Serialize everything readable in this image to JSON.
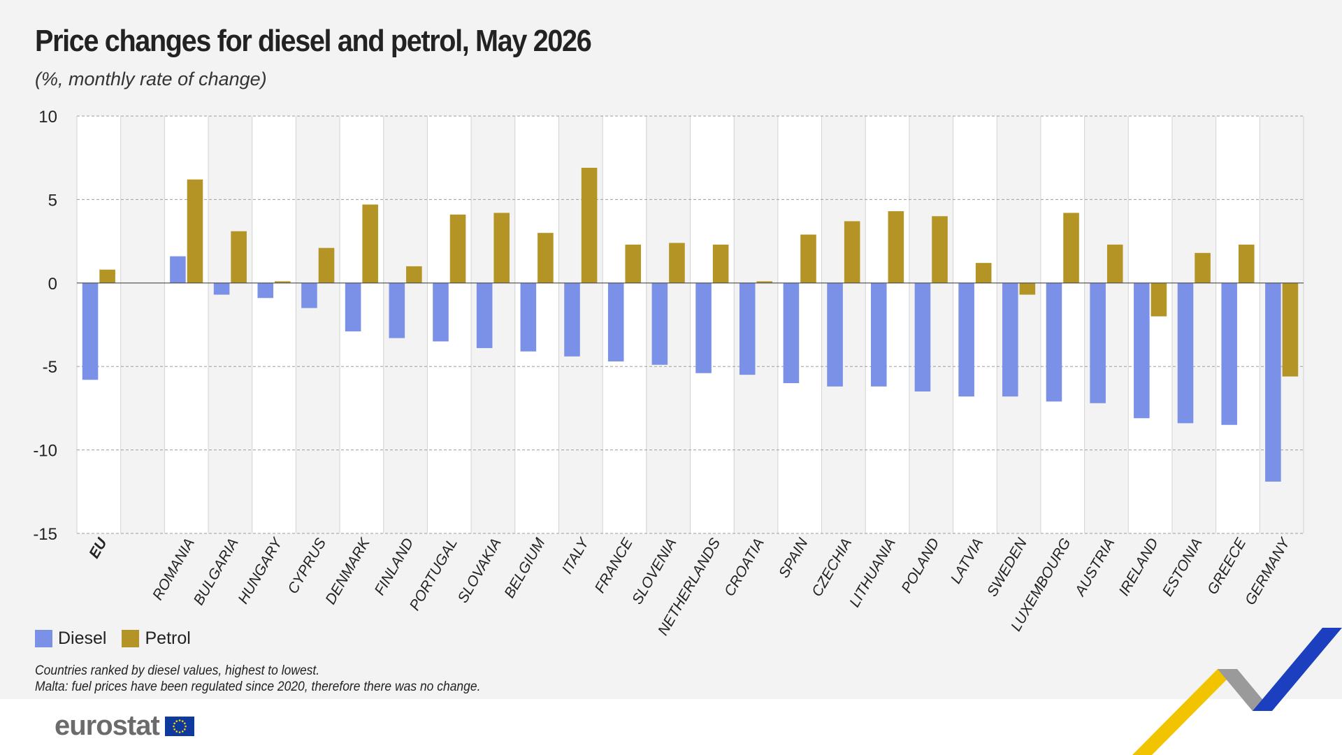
{
  "header": {
    "title": "Price changes for diesel and petrol, May 2026",
    "subtitle": "(%, monthly rate of change)"
  },
  "legend": {
    "diesel_label": "Diesel",
    "petrol_label": "Petrol"
  },
  "notes": {
    "line1": "Countries ranked by diesel values, highest to lowest.",
    "line2": "Malta: fuel prices have been regulated since 2020, therefore there was no change."
  },
  "logo": {
    "text": "eurostat",
    "flag_icon": "eu-flag-icon"
  },
  "colors": {
    "diesel": "#7b91e8",
    "petrol": "#b39424",
    "background": "#f3f3f3",
    "band": "#ffffff",
    "ribbon_yellow": "#f2c400",
    "ribbon_grey": "#9a9a9a",
    "ribbon_blue": "#1b3fbf"
  },
  "chart_data": {
    "type": "bar",
    "title": "Price changes for diesel and petrol, May 2026",
    "subtitle": "(%, monthly rate of change)",
    "categories": [
      "EU",
      "",
      "ROMANIA",
      "BULGARIA",
      "HUNGARY",
      "CYPRUS",
      "DENMARK",
      "FINLAND",
      "PORTUGAL",
      "SLOVAKIA",
      "BELGIUM",
      "ITALY",
      "FRANCE",
      "SLOVENIA",
      "NETHERLANDS",
      "CROATIA",
      "SPAIN",
      "CZECHIA",
      "LITHUANIA",
      "POLAND",
      "LATVIA",
      "SWEDEN",
      "LUXEMBOURG",
      "AUSTRIA",
      "IRELAND",
      "ESTONIA",
      "GREECE",
      "GERMANY"
    ],
    "bold_categories": [
      "EU"
    ],
    "series": [
      {
        "name": "Diesel",
        "values": [
          -5.8,
          null,
          1.6,
          -0.7,
          -0.9,
          -1.5,
          -2.9,
          -3.3,
          -3.5,
          -3.9,
          -4.1,
          -4.4,
          -4.7,
          -4.9,
          -5.4,
          -5.5,
          -6.0,
          -6.2,
          -6.2,
          -6.5,
          -6.8,
          -6.8,
          -7.1,
          -7.2,
          -8.1,
          -8.4,
          -8.5,
          -11.9
        ]
      },
      {
        "name": "Petrol",
        "values": [
          0.8,
          null,
          6.2,
          3.1,
          0.1,
          2.1,
          4.7,
          1.0,
          4.1,
          4.2,
          3.0,
          6.9,
          2.3,
          2.4,
          2.3,
          0.1,
          2.9,
          3.7,
          4.3,
          4.0,
          1.2,
          -0.7,
          4.2,
          2.3,
          -2.0,
          1.8,
          2.3,
          -5.6
        ]
      }
    ],
    "yticks": [
      10,
      5,
      0,
      -5,
      -10,
      -15
    ],
    "ylim": [
      -15,
      10
    ],
    "xlabel": "",
    "ylabel": "",
    "grid": true,
    "legend_position": "bottom-left"
  }
}
